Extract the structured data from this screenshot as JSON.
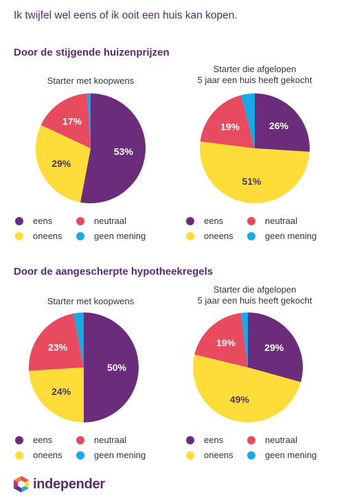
{
  "title": "Ik twijfel wel eens of ik ooit een huis kan kopen.",
  "colors": {
    "eens": "#6b2c7b",
    "neutraal": "#e84a5f",
    "oneens": "#fedd3a",
    "geen_mening": "#19a9e6"
  },
  "sections": [
    {
      "title": "Door de stijgende huizenprijzen",
      "charts": [
        {
          "title_lines": [
            "Starter met koopwens"
          ]
        },
        {
          "title_lines": [
            "Starter die afgelopen",
            "5 jaar een huis heeft gekocht"
          ]
        }
      ]
    },
    {
      "title": "Door de aangescherpte hypotheekregels",
      "charts": [
        {
          "title_lines": [
            "Starter met koopwens"
          ]
        },
        {
          "title_lines": [
            "Starter die afgelopen",
            "5 jaar een huis heeft gekocht"
          ]
        }
      ]
    }
  ],
  "legend": [
    "eens",
    "neutraal",
    "oneens",
    "geen mening"
  ],
  "chart_data": [
    {
      "type": "pie",
      "title": "Starter met koopwens",
      "categories": [
        "eens",
        "oneens",
        "neutraal",
        "geen mening"
      ],
      "values": [
        53,
        29,
        17,
        1
      ],
      "labels": [
        "53%",
        "29%",
        "17%",
        ""
      ]
    },
    {
      "type": "pie",
      "title": "Starter die afgelopen 5 jaar een huis heeft gekocht",
      "categories": [
        "eens",
        "oneens",
        "neutraal",
        "geen mening"
      ],
      "values": [
        26,
        51,
        19,
        4
      ],
      "labels": [
        "26%",
        "51%",
        "19%",
        ""
      ]
    },
    {
      "type": "pie",
      "title": "Starter met koopwens",
      "categories": [
        "eens",
        "oneens",
        "neutraal",
        "geen mening"
      ],
      "values": [
        50,
        24,
        23,
        3
      ],
      "labels": [
        "50%",
        "24%",
        "23%",
        ""
      ]
    },
    {
      "type": "pie",
      "title": "Starter die afgelopen 5 jaar een huis heeft gekocht",
      "categories": [
        "eens",
        "oneens",
        "neutraal",
        "geen mening"
      ],
      "values": [
        29,
        49,
        19,
        2
      ],
      "labels": [
        "29%",
        "49%",
        "19%",
        ""
      ]
    }
  ],
  "logo": {
    "text": "independer",
    "icon": "hexagon-logo-icon"
  }
}
